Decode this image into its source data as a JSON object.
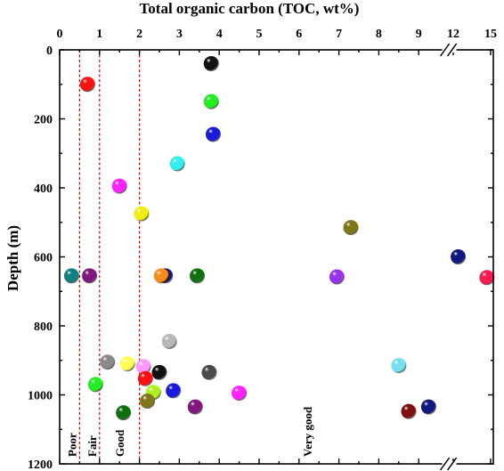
{
  "chart_data": {
    "type": "scatter",
    "title": "",
    "xlabel": "Total organic carbon (TOC, wt%)",
    "ylabel": "Depth  (m)",
    "x_axis_position": "top",
    "y_axis_inverted": true,
    "xlim": [
      0,
      15
    ],
    "ylim": [
      0,
      1200
    ],
    "x_axis_break": {
      "from": 9.5,
      "to": 12,
      "mark": "//"
    },
    "x_tick_labels": [
      "0",
      "1",
      "2",
      "3",
      "4",
      "5",
      "6",
      "7",
      "8",
      "9",
      "12",
      "15"
    ],
    "y_tick_labels": [
      "0",
      "200",
      "400",
      "600",
      "800",
      "1000",
      "1200"
    ],
    "grid": false,
    "legend": "none",
    "reference_lines": [
      {
        "x": 0.5,
        "color": "#e00000",
        "style": "dashed"
      },
      {
        "x": 1.0,
        "color": "#e00000",
        "style": "dashed"
      },
      {
        "x": 2.0,
        "color": "#e00000",
        "style": "dashed"
      }
    ],
    "zone_labels": [
      {
        "text": "Poor",
        "x": 0.3
      },
      {
        "text": "Fair",
        "x": 0.8
      },
      {
        "text": "Good",
        "x": 1.5
      },
      {
        "text": "Very good",
        "x": 6.2
      }
    ],
    "points": [
      {
        "x": 3.8,
        "y": 40,
        "color": "#111111"
      },
      {
        "x": 0.7,
        "y": 100,
        "color": "#ff1010"
      },
      {
        "x": 3.8,
        "y": 150,
        "color": "#22ee22"
      },
      {
        "x": 3.85,
        "y": 245,
        "color": "#1a1adc"
      },
      {
        "x": 2.95,
        "y": 330,
        "color": "#33f0f0"
      },
      {
        "x": 1.5,
        "y": 395,
        "color": "#ff22ff"
      },
      {
        "x": 2.05,
        "y": 475,
        "color": "#eeee11"
      },
      {
        "x": 7.3,
        "y": 515,
        "color": "#807818"
      },
      {
        "x": 12.4,
        "y": 600,
        "color": "#101880"
      },
      {
        "x": 0.3,
        "y": 655,
        "color": "#108080"
      },
      {
        "x": 0.75,
        "y": 655,
        "color": "#801880"
      },
      {
        "x": 2.65,
        "y": 655,
        "color": "#101880"
      },
      {
        "x": 2.55,
        "y": 655,
        "color": "#ff8c1a"
      },
      {
        "x": 3.45,
        "y": 655,
        "color": "#107010"
      },
      {
        "x": 6.95,
        "y": 658,
        "color": "#9933ee"
      },
      {
        "x": 14.7,
        "y": 660,
        "color": "#ff1a50"
      },
      {
        "x": 2.75,
        "y": 845,
        "color": "#b8b8b8"
      },
      {
        "x": 1.2,
        "y": 905,
        "color": "#8a8a8a"
      },
      {
        "x": 1.7,
        "y": 910,
        "color": "#ffff55"
      },
      {
        "x": 2.1,
        "y": 918,
        "color": "#ff99ff"
      },
      {
        "x": 2.5,
        "y": 935,
        "color": "#111111"
      },
      {
        "x": 3.75,
        "y": 935,
        "color": "#4a4a4a"
      },
      {
        "x": 8.5,
        "y": 915,
        "color": "#77e0f0"
      },
      {
        "x": 2.15,
        "y": 953,
        "color": "#ff1010"
      },
      {
        "x": 0.9,
        "y": 970,
        "color": "#22ee22"
      },
      {
        "x": 2.85,
        "y": 988,
        "color": "#1a1adc"
      },
      {
        "x": 2.35,
        "y": 993,
        "color": "#b0f020"
      },
      {
        "x": 4.5,
        "y": 995,
        "color": "#ff22ff"
      },
      {
        "x": 2.2,
        "y": 1018,
        "color": "#807818"
      },
      {
        "x": 3.4,
        "y": 1035,
        "color": "#801880"
      },
      {
        "x": 9.25,
        "y": 1035,
        "color": "#101880"
      },
      {
        "x": 1.6,
        "y": 1052,
        "color": "#107010"
      },
      {
        "x": 8.75,
        "y": 1048,
        "color": "#801010"
      }
    ]
  }
}
